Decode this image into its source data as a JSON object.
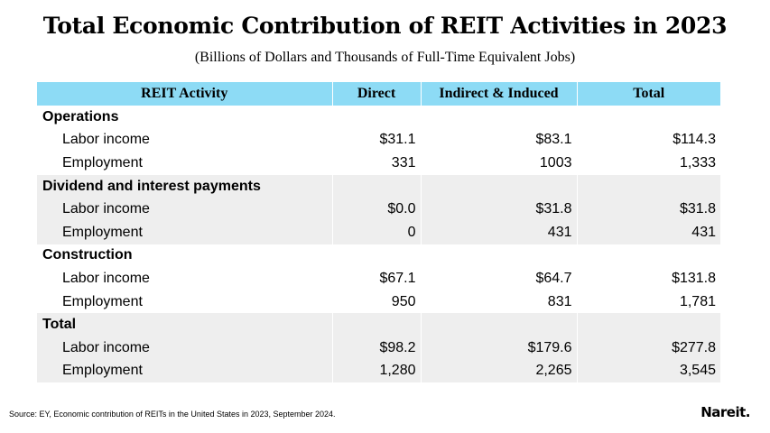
{
  "title": "Total Economic Contribution of REIT Activities in 2023",
  "subtitle": "(Billions of Dollars and Thousands of Full-Time Equivalent Jobs)",
  "table": {
    "headers": [
      "REIT Activity",
      "Direct",
      "Indirect & Induced",
      "Total"
    ],
    "sections": [
      {
        "name": "Operations",
        "rows": [
          {
            "label": "Labor income",
            "direct": "$31.1",
            "indirect": "$83.1",
            "total": "$114.3"
          },
          {
            "label": "Employment",
            "direct": "331",
            "indirect": "1003",
            "total": "1,333"
          }
        ]
      },
      {
        "name": "Dividend and interest payments",
        "rows": [
          {
            "label": "Labor income",
            "direct": "$0.0",
            "indirect": "$31.8",
            "total": "$31.8"
          },
          {
            "label": "Employment",
            "direct": "0",
            "indirect": "431",
            "total": "431"
          }
        ]
      },
      {
        "name": "Construction",
        "rows": [
          {
            "label": "Labor income",
            "direct": "$67.1",
            "indirect": "$64.7",
            "total": "$131.8"
          },
          {
            "label": "Employment",
            "direct": "950",
            "indirect": "831",
            "total": "1,781"
          }
        ]
      },
      {
        "name": "Total",
        "rows": [
          {
            "label": "Labor income",
            "direct": "$98.2",
            "indirect": "$179.6",
            "total": "$277.8"
          },
          {
            "label": "Employment",
            "direct": "1,280",
            "indirect": "2,265",
            "total": "3,545"
          }
        ]
      }
    ]
  },
  "source": "Source: EY, Economic contribution of REITs in the United States in 2023, September 2024.",
  "logo": "Nareit.",
  "colors": {
    "header_bg": "#8ddbf5",
    "shade_bg": "#eeeeee"
  }
}
